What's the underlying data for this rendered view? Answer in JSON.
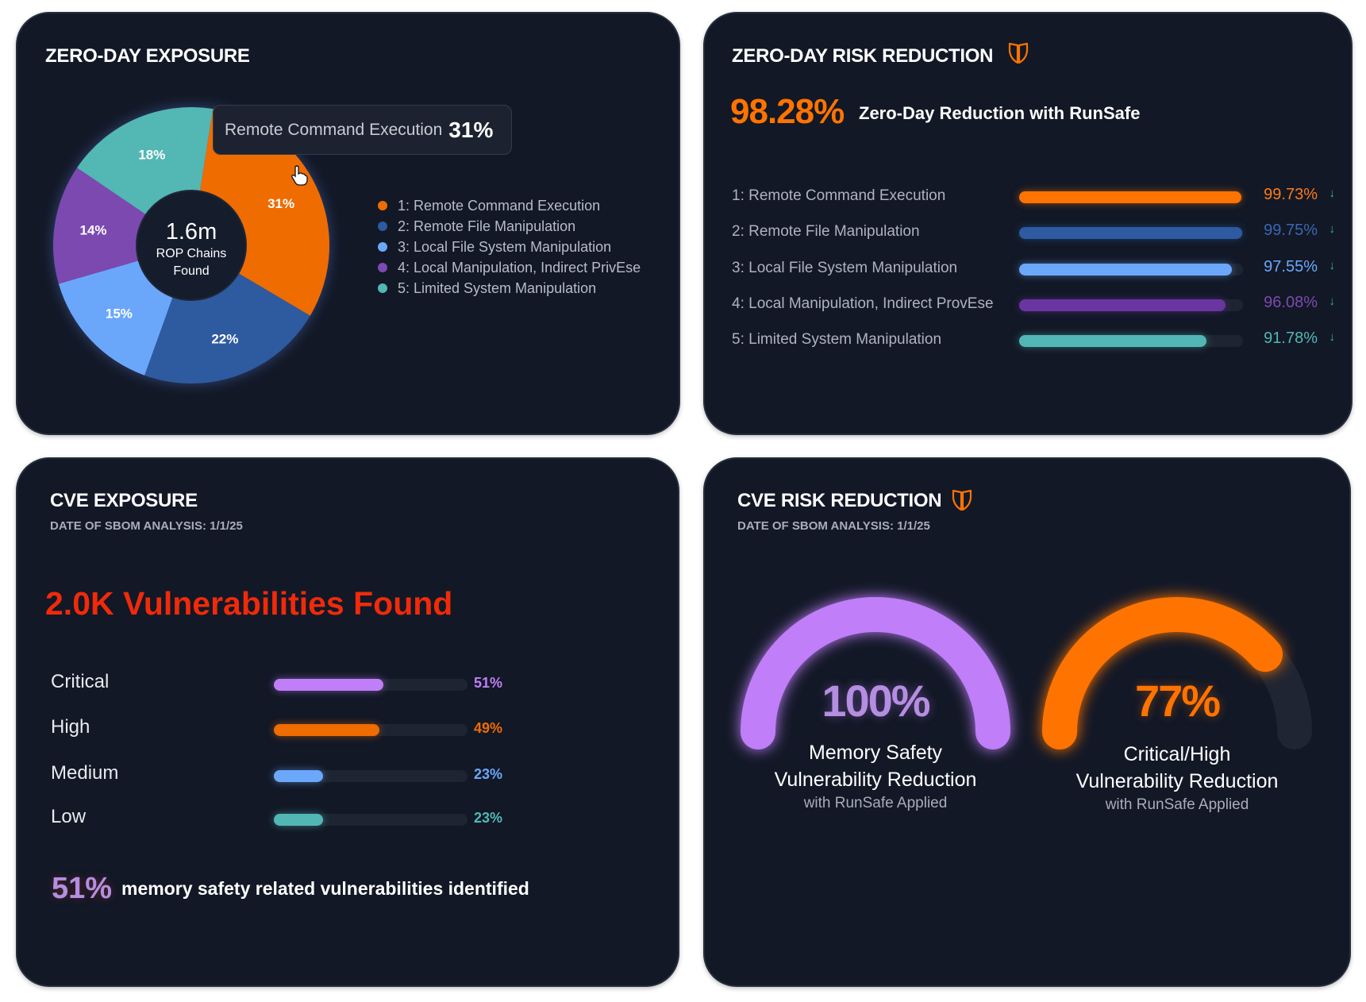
{
  "colors": {
    "card_bg": "#121826",
    "orange": "#ff7300",
    "pie_orange": "#ef6c00",
    "dark_blue": "#2d5aa0",
    "light_blue": "#6ba7fb",
    "purple": "#7c4ab0",
    "violet": "#c07ef9",
    "teal": "#52b7b4",
    "red": "#f02a0a",
    "track": "#1e2532"
  },
  "zero_day_exposure": {
    "title": "ZERO-DAY EXPOSURE",
    "center_value": "1.6m",
    "center_label_1": "ROP Chains",
    "center_label_2": "Found",
    "tooltip": {
      "label": "Remote Command Execution",
      "value": "31%"
    },
    "cursor_icon": "hand-pointer-icon"
  },
  "zero_day_reduction": {
    "title": "ZERO-DAY RISK REDUCTION",
    "icon": "shield-icon",
    "headline_value": "98.28%",
    "headline_label": "Zero-Day Reduction with RunSafe",
    "trend_icon": "arrow-down-icon"
  },
  "cve_exposure": {
    "title": "CVE EXPOSURE",
    "date": "DATE OF SBOM ANALYSIS: 1/1/25",
    "headline": "2.0K Vulnerabilities Found",
    "footer_value": "51%",
    "footer_label": "memory safety related vulnerabilities identified"
  },
  "cve_reduction": {
    "title": "CVE RISK REDUCTION",
    "icon": "shield-icon",
    "date": "DATE OF SBOM ANALYSIS: 1/1/25"
  },
  "chart_data": [
    {
      "type": "pie",
      "variant": "donut",
      "legend_placement": "right",
      "slices": [
        {
          "legend": "1: Remote Command Execution",
          "label": "31%",
          "value": 31,
          "color": "#ef6c00"
        },
        {
          "legend": "2: Remote File Manipulation",
          "label": "22%",
          "value": 22,
          "color": "#2d5aa0"
        },
        {
          "legend": "3: Local File System Manipulation",
          "label": "15%",
          "value": 15,
          "color": "#6ba7fb"
        },
        {
          "legend": "4: Local Manipulation, Indirect PrivEse",
          "label": "14%",
          "value": 14,
          "color": "#7c4ab0"
        },
        {
          "legend": "5: Limited System Manipulation",
          "label": "18%",
          "value": 18,
          "color": "#52b7b4"
        }
      ]
    },
    {
      "type": "bar",
      "orientation": "horizontal",
      "categories": [
        "1: Remote Command Execution",
        "2: Remote File Manipulation",
        "3: Local File System Manipulation",
        "4: Local Manipulation, Indirect ProvEse",
        "5: Limited System Manipulation"
      ],
      "values": [
        99.73,
        99.75,
        97.55,
        96.08,
        91.78
      ],
      "labels": [
        "99.73%",
        "99.75%",
        "97.55%",
        "96.08%",
        "91.78%"
      ],
      "colors": [
        "#ff7300",
        "#2d5aa0",
        "#6ba7fb",
        "#6a35a0",
        "#52b7b4"
      ],
      "label_colors": [
        "#ff7a1a",
        "#3a67b0",
        "#6ba7fb",
        "#7c4ab0",
        "#52b7b4"
      ]
    },
    {
      "type": "bar",
      "orientation": "horizontal",
      "categories": [
        "Critical",
        "High",
        "Medium",
        "Low"
      ],
      "values": [
        51,
        49,
        23,
        23
      ],
      "labels": [
        "51%",
        "49%",
        "23%",
        "23%"
      ],
      "colors": [
        "#c07ef9",
        "#ef6c00",
        "#6ba7fb",
        "#52b7b4"
      ]
    },
    {
      "type": "gauge",
      "gauges": [
        {
          "value": 100,
          "label": "100%",
          "line1": "Memory Safety",
          "line2": "Vulnerability Reduction",
          "sub": "with RunSafe Applied",
          "color": "#c07ef9",
          "text_color": "#b48ee0"
        },
        {
          "value": 77,
          "label": "77%",
          "line1": "Critical/High",
          "line2": "Vulnerability Reduction",
          "sub": "with RunSafe Applied",
          "color": "#ff7300",
          "text_color": "#ff7300"
        }
      ]
    }
  ]
}
